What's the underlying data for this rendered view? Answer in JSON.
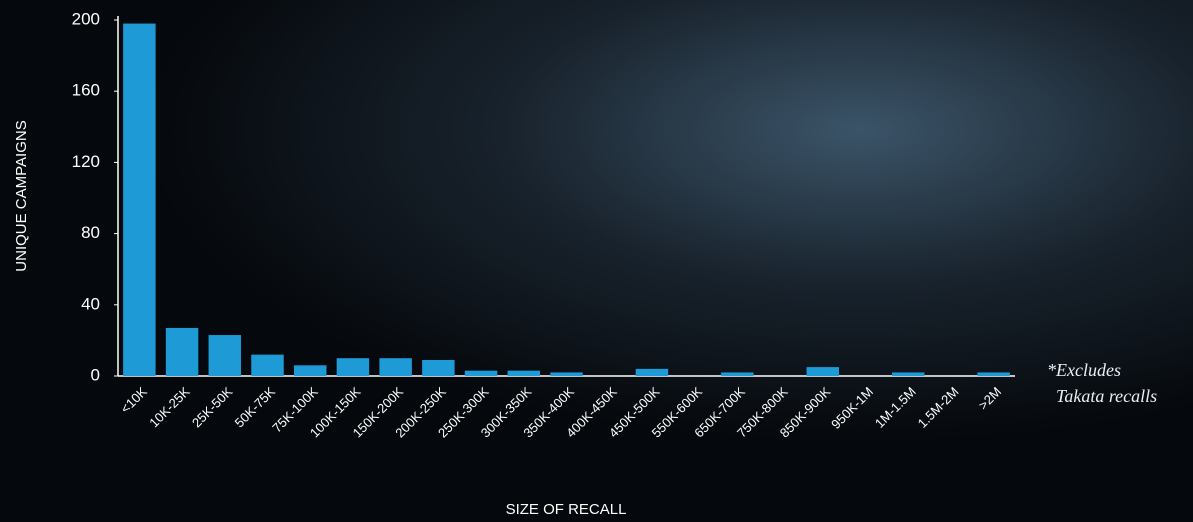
{
  "chart_data": {
    "type": "bar",
    "x_label": "SIZE OF RECALL",
    "y_label": "UNIQUE CAMPAIGNS",
    "note": [
      "*Excludes",
      "Takata recalls"
    ],
    "categories": [
      "<10K",
      "10K-25K",
      "25K-50K",
      "50K-75K",
      "75K-100K",
      "100K-150K",
      "150K-200K",
      "200K-250K",
      "250K-300K",
      "300K-350K",
      "350K-400K",
      "400K-450K",
      "450K-500K",
      "550K-600K",
      "650K-700K",
      "750K-800K",
      "850K-900K",
      "950K-1M",
      "1M-1.5M",
      "1.5M-2M",
      ">2M"
    ],
    "values": [
      198,
      27,
      23,
      12,
      6,
      10,
      10,
      9,
      3,
      3,
      2,
      null,
      4,
      null,
      2,
      null,
      5,
      null,
      2,
      null,
      2
    ],
    "color": "#1e9bd7",
    "ylim": [
      0,
      200
    ],
    "yticks": [
      0,
      40,
      80,
      120,
      160,
      200
    ],
    "grid": false
  }
}
